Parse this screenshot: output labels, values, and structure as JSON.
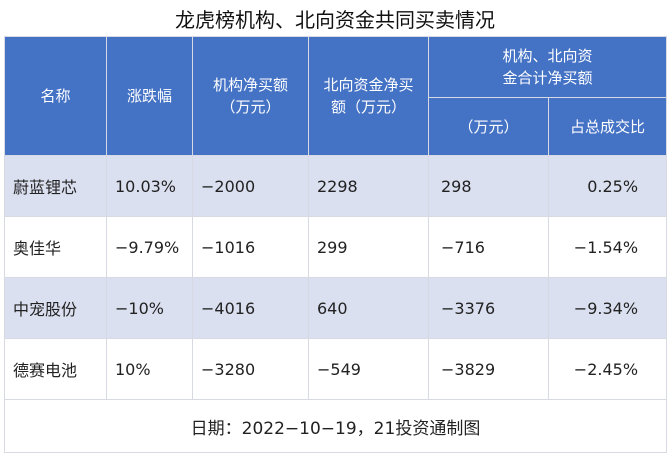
{
  "title": "龙虎榜机构、北向资金共同买卖情况",
  "headers": {
    "name": "名称",
    "change": "涨跌幅",
    "inst": "机构净买额（万元）",
    "north": "北向资金净买额（万元）",
    "combined_group": "机构、北向资金合计净买额",
    "combined_wan": "（万元）",
    "combined_ratio": "占总成交比"
  },
  "rows": [
    {
      "name": "蔚蓝锂芯",
      "change": "10.03%",
      "inst": "−2000",
      "north": "2298",
      "combined": "298",
      "ratio": "0.25%"
    },
    {
      "name": "奥佳华",
      "change": "−9.79%",
      "inst": "−1016",
      "north": "299",
      "combined": "−716",
      "ratio": "−1.54%"
    },
    {
      "name": "中宠股份",
      "change": "−10%",
      "inst": "−4016",
      "north": "640",
      "combined": "−3376",
      "ratio": "−9.34%"
    },
    {
      "name": "德赛电池",
      "change": "10%",
      "inst": "−3280",
      "north": "−549",
      "combined": "−3829",
      "ratio": "−2.45%"
    }
  ],
  "footer": "日期：2022−10−19，21投资通制图"
}
